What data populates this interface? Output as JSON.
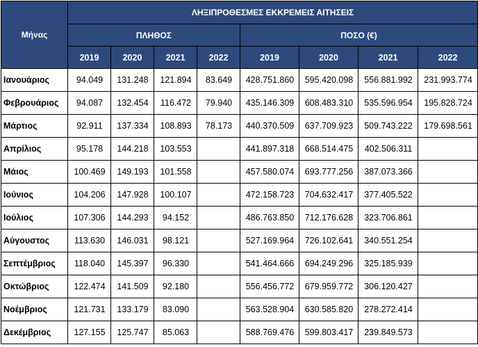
{
  "header": {
    "month_label": "Μήνας",
    "group_title": "ΛΗΞΙΠΡΟΘΕΣΜΕΣ ΕΚΚΡΕΜΕΙΣ ΑΙΤΗΣΕΙΣ",
    "count_title": "ΠΛΗΘΟΣ",
    "amount_title": "ΠΟΣΟ (€)",
    "years": [
      "2019",
      "2020",
      "2021",
      "2022"
    ]
  },
  "rows": [
    {
      "month": "Ιανουάριος",
      "count": [
        "94.049",
        "131.248",
        "121.894",
        "83.649"
      ],
      "amount": [
        "428.751.860",
        "595.420.098",
        "556.881.992",
        "231.993.774"
      ]
    },
    {
      "month": "Φεβρουάριος",
      "count": [
        "94.087",
        "132.454",
        "116.472",
        "79.940"
      ],
      "amount": [
        "435.146.309",
        "608.483.310",
        "535.596.954",
        "195.828.724"
      ]
    },
    {
      "month": "Μάρτιος",
      "count": [
        "92.911",
        "137.334",
        "108.893",
        "78.173"
      ],
      "amount": [
        "440.370.509",
        "637.709.923",
        "509.743.222",
        "179.698.561"
      ]
    },
    {
      "month": "Απρίλιος",
      "count": [
        "95.178",
        "144.218",
        "103.553",
        ""
      ],
      "amount": [
        "441.897.318",
        "668.514.475",
        "402.506.311",
        ""
      ]
    },
    {
      "month": "Μάιος",
      "count": [
        "100.469",
        "149.193",
        "101.558",
        ""
      ],
      "amount": [
        "457.580.074",
        "693.777.256",
        "387.073.366",
        ""
      ]
    },
    {
      "month": "Ιούνιος",
      "count": [
        "104.206",
        "147.928",
        "100.107",
        ""
      ],
      "amount": [
        "472.158.723",
        "704.632.417",
        "377.405.522",
        ""
      ]
    },
    {
      "month": "Ιούλιος",
      "count": [
        "107.306",
        "144.293",
        "94.152",
        ""
      ],
      "amount": [
        "486.763.850",
        "712.176.628",
        "323.706.861",
        ""
      ]
    },
    {
      "month": "Αύγουστος",
      "count": [
        "113.630",
        "146.031",
        "98.121",
        ""
      ],
      "amount": [
        "527.169.964",
        "726.102.641",
        "340.551.254",
        ""
      ]
    },
    {
      "month": "Σεπτέμβριος",
      "count": [
        "118.040",
        "145.397",
        "96.330",
        ""
      ],
      "amount": [
        "541.464.666",
        "694.249.296",
        "325.185.939",
        ""
      ]
    },
    {
      "month": "Οκτώβριος",
      "count": [
        "122.474",
        "141.509",
        "92.180",
        ""
      ],
      "amount": [
        "556.456.772",
        "679.959.772",
        "306.120.427",
        ""
      ]
    },
    {
      "month": "Νοέμβριος",
      "count": [
        "121.731",
        "133.179",
        "83.090",
        ""
      ],
      "amount": [
        "563.528.904",
        "630.585.820",
        "278.272.414",
        ""
      ]
    },
    {
      "month": "Δεκέμβριος",
      "count": [
        "127.155",
        "125.747",
        "85.063",
        ""
      ],
      "amount": [
        "588.769.476",
        "599.803.417",
        "239.849.573",
        ""
      ]
    }
  ],
  "colors": {
    "header_bg": "#2e4a7d",
    "header_text": "#ffffff",
    "border": "#000000"
  }
}
